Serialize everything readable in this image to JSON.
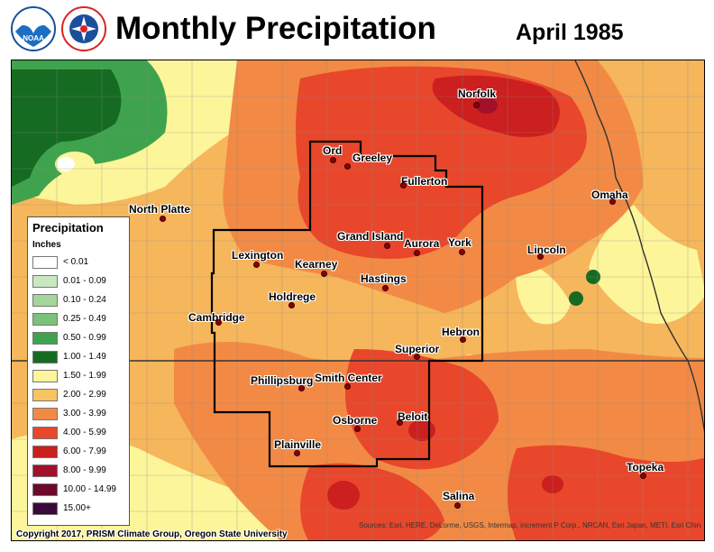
{
  "header": {
    "title": "Monthly Precipitation",
    "date": "April 1985",
    "logos": [
      {
        "name": "noaa-logo",
        "text": "NOAA"
      },
      {
        "name": "nws-logo",
        "text": "NATIONAL WEATHER SERVICE"
      }
    ]
  },
  "legend": {
    "title": "Precipitation",
    "units": "Inches",
    "items": [
      {
        "label": "< 0.01",
        "color": "#ffffff"
      },
      {
        "label": "0.01 - 0.09",
        "color": "#c8e8c0"
      },
      {
        "label": "0.10 - 0.24",
        "color": "#a4d69a"
      },
      {
        "label": "0.25 - 0.49",
        "color": "#7cc17a"
      },
      {
        "label": "0.50 - 0.99",
        "color": "#3fa34d"
      },
      {
        "label": "1.00 - 1.49",
        "color": "#166b22"
      },
      {
        "label": "1.50 - 1.99",
        "color": "#fdf59a"
      },
      {
        "label": "2.00 - 2.99",
        "color": "#f8c462"
      },
      {
        "label": "3.00 - 3.99",
        "color": "#f28a45"
      },
      {
        "label": "4.00 - 5.99",
        "color": "#e8472b"
      },
      {
        "label": "6.00 - 7.99",
        "color": "#cc1f1f"
      },
      {
        "label": "8.00 - 9.99",
        "color": "#a3102b"
      },
      {
        "label": "10.00 - 14.99",
        "color": "#6b0a2a"
      },
      {
        "label": "15.00+",
        "color": "#3a0a3a"
      }
    ]
  },
  "cities": [
    {
      "name": "Norfolk"
    },
    {
      "name": "Ord"
    },
    {
      "name": "Greeley"
    },
    {
      "name": "Fullerton"
    },
    {
      "name": "North Platte"
    },
    {
      "name": "Omaha"
    },
    {
      "name": "Grand Island"
    },
    {
      "name": "Aurora"
    },
    {
      "name": "York"
    },
    {
      "name": "Lincoln"
    },
    {
      "name": "Lexington"
    },
    {
      "name": "Kearney"
    },
    {
      "name": "Hastings"
    },
    {
      "name": "Holdrege"
    },
    {
      "name": "Cambridge"
    },
    {
      "name": "Hebron"
    },
    {
      "name": "Superior"
    },
    {
      "name": "Phillipsburg"
    },
    {
      "name": "Smith Center"
    },
    {
      "name": "Beloit"
    },
    {
      "name": "Osborne"
    },
    {
      "name": "Plainville"
    },
    {
      "name": "Topeka"
    },
    {
      "name": "Salina"
    }
  ],
  "footer": {
    "copyright": "Copyright 2017, PRISM Climate Group, Oregon State University",
    "source": "Sources: Esri, HERE, DeLorme, USGS, Intermap, increment P Corp., NRCAN, Esri Japan, METI, Esri China (Hong Kong), Esri (Thailand), TomTom, MapmyIndia, © OpenStreetMap contributors, and the GIS User Community"
  }
}
